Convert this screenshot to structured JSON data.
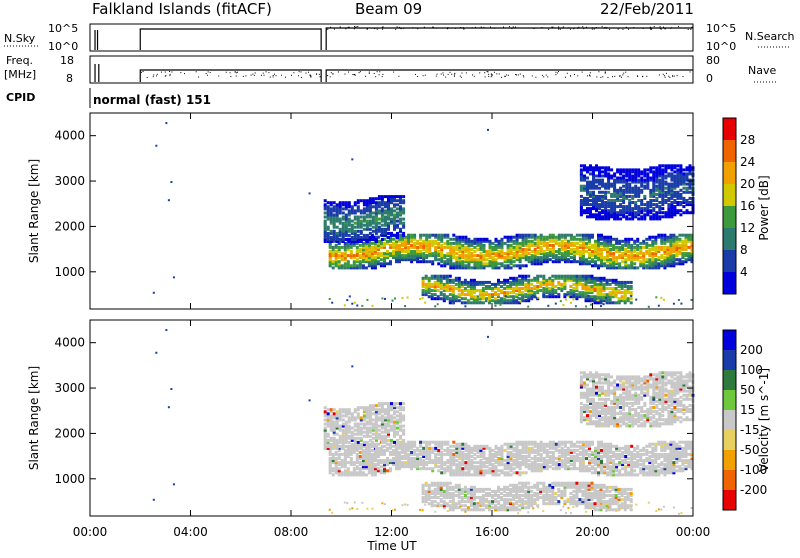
{
  "header": {
    "title": "Falkland Islands (fitACF)",
    "beam": "Beam 09",
    "date": "22/Feb/2011"
  },
  "nsky_panel": {
    "left_label": "N.Sky",
    "left_ticks": [
      "10^5",
      "10^0"
    ],
    "right_ticks": [
      "10^5",
      "10^0"
    ],
    "right_label": "N.Search"
  },
  "freq_panel": {
    "left_label_1": "Freq.",
    "left_label_2": "[MHz]",
    "left_ticks": [
      "18",
      "8"
    ],
    "right_ticks": [
      "80",
      "0"
    ],
    "right_label": "Nave"
  },
  "cpid": {
    "label": "CPID",
    "value": "normal (fast) 151"
  },
  "x_axis": {
    "label": "Time UT",
    "ticks": [
      "00:00",
      "04:00",
      "08:00",
      "12:00",
      "16:00",
      "20:00",
      "00:00"
    ]
  },
  "colors": {
    "power": [
      "#0000dc",
      "#1a3ca8",
      "#2d7a6e",
      "#3c9a3c",
      "#d2c800",
      "#f0a000",
      "#f06400",
      "#e60000"
    ],
    "velocity": [
      "#e60000",
      "#f06400",
      "#f0a000",
      "#e8d060",
      "#c8c8c8",
      "#6ec83c",
      "#2d7a3c",
      "#1a3ca8",
      "#0000dc"
    ],
    "velocity_gray": "#c8c8c8"
  },
  "chart_data": [
    {
      "type": "heatmap",
      "name_label": "",
      "ylabel": "Slant Range [km]",
      "y_ticks": [
        1000,
        2000,
        3000,
        4000
      ],
      "ylim": [
        180,
        4500
      ],
      "xlim_hours": [
        0,
        24
      ],
      "colorbar": {
        "label": "Power [dB]",
        "ticks": [
          "4",
          "8",
          "12",
          "16",
          "20",
          "24",
          "28"
        ],
        "range": [
          0,
          32
        ]
      },
      "bands": [
        {
          "t_start": 9.5,
          "t_end": 24,
          "range_center": 1500,
          "range_width": 380,
          "peak_db": 28
        },
        {
          "t_start": 13.2,
          "t_end": 21.5,
          "range_center": 650,
          "range_width": 300,
          "peak_db": 26
        },
        {
          "t_start": 9.3,
          "t_end": 12.5,
          "range_center": 2200,
          "range_width": 500,
          "peak_db": 14
        },
        {
          "t_start": 19.5,
          "t_end": 24,
          "range_center": 2800,
          "range_width": 600,
          "peak_db": 10
        }
      ]
    },
    {
      "type": "heatmap",
      "ylabel": "Slant Range [km]",
      "y_ticks": [
        1000,
        2000,
        3000,
        4000
      ],
      "ylim": [
        180,
        4500
      ],
      "xlim_hours": [
        0,
        24
      ],
      "colorbar": {
        "label": "Velocity [m s^-1]",
        "ticks": [
          "200",
          "100",
          "50",
          "15",
          "-15",
          "-50",
          "-100",
          "-200"
        ],
        "range": [
          -250,
          250
        ]
      },
      "dominant_velocity": "-15 to 15"
    }
  ]
}
